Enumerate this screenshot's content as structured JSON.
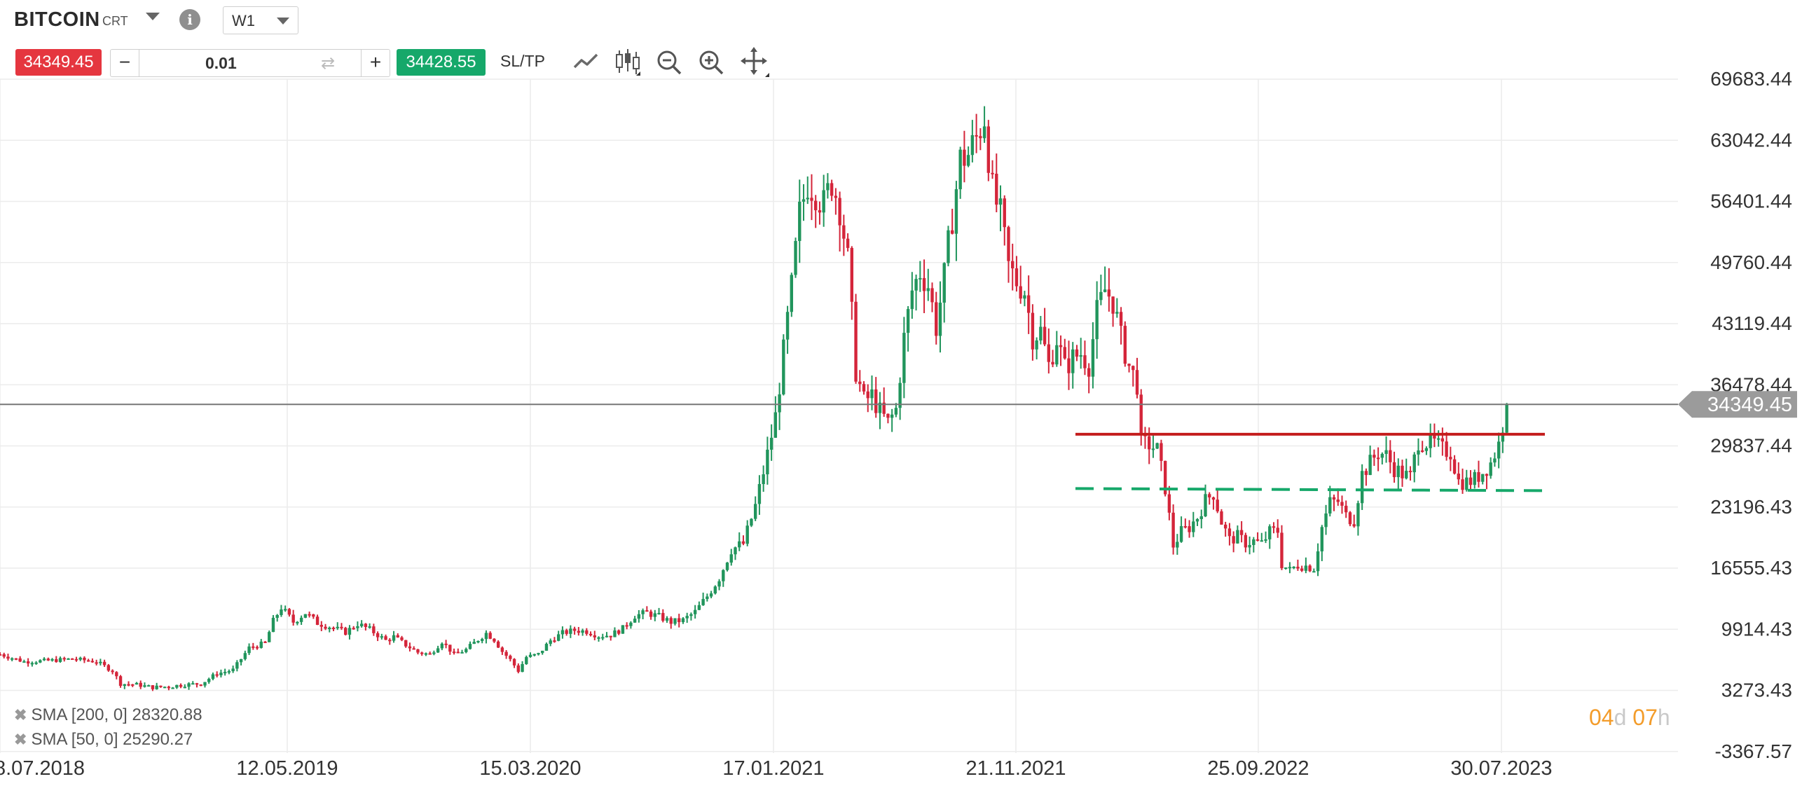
{
  "header": {
    "symbol": "BITCOIN",
    "symbol_suffix": "CRT",
    "timeframe": "W1"
  },
  "trade": {
    "sell_price": "34349.45",
    "lot": "0.01",
    "minus_label": "−",
    "plus_label": "+",
    "buy_price": "34428.55",
    "sltp_label": "SL/TP"
  },
  "toolbar": {
    "icons": [
      "line-chart-icon",
      "candlestick-icon",
      "zoom-out-icon",
      "zoom-in-icon",
      "move-icon"
    ]
  },
  "indicators": [
    {
      "label": "SMA [200, 0] 28320.88"
    },
    {
      "label": "SMA [50, 0] 25290.27"
    }
  ],
  "timer": {
    "days": "04",
    "days_unit": "d",
    "hours": "07",
    "hours_unit": "h"
  },
  "colors": {
    "up": "#21955c",
    "down": "#d4253a",
    "resistance": "#c41d1d",
    "support": "#16a86a",
    "price_line": "#777777",
    "grid": "#ececec"
  },
  "chart_data": {
    "type": "candlestick",
    "title": "",
    "y_ticks": [
      "69683.44",
      "63042.44",
      "56401.44",
      "49760.44",
      "43119.44",
      "36478.44",
      "29837.44",
      "23196.43",
      "16555.43",
      "9914.43",
      "3273.43",
      "-3367.57"
    ],
    "x_ticks": [
      "8.07.2018",
      "12.05.2019",
      "15.03.2020",
      "17.01.2021",
      "21.11.2021",
      "25.09.2022",
      "30.07.2023"
    ],
    "current_price": 34349.45,
    "current_price_label": "34349.45",
    "resistance_level": 31100,
    "support_level": 25200,
    "close_path": [
      [
        0,
        7200
      ],
      [
        6,
        6400
      ],
      [
        12,
        6500
      ],
      [
        18,
        6700
      ],
      [
        24,
        6400
      ],
      [
        28,
        5400
      ],
      [
        30,
        4000
      ],
      [
        34,
        3900
      ],
      [
        38,
        3600
      ],
      [
        42,
        3700
      ],
      [
        46,
        3900
      ],
      [
        50,
        4000
      ],
      [
        54,
        5100
      ],
      [
        58,
        5500
      ],
      [
        62,
        7900
      ],
      [
        66,
        8400
      ],
      [
        68,
        10800
      ],
      [
        70,
        12300
      ],
      [
        73,
        10700
      ],
      [
        76,
        11700
      ],
      [
        79,
        10600
      ],
      [
        82,
        10200
      ],
      [
        86,
        9600
      ],
      [
        89,
        10500
      ],
      [
        92,
        9900
      ],
      [
        96,
        8700
      ],
      [
        98,
        9100
      ],
      [
        101,
        8200
      ],
      [
        104,
        7400
      ],
      [
        107,
        7200
      ],
      [
        110,
        8600
      ],
      [
        113,
        7200
      ],
      [
        116,
        7700
      ],
      [
        119,
        8800
      ],
      [
        121,
        9500
      ],
      [
        123,
        8800
      ],
      [
        125,
        7500
      ],
      [
        127,
        6600
      ],
      [
        129,
        5400
      ],
      [
        131,
        6900
      ],
      [
        134,
        7200
      ],
      [
        137,
        8700
      ],
      [
        140,
        9500
      ],
      [
        143,
        9800
      ],
      [
        146,
        9700
      ],
      [
        149,
        9200
      ],
      [
        152,
        9300
      ],
      [
        155,
        10000
      ],
      [
        158,
        11400
      ],
      [
        161,
        11700
      ],
      [
        164,
        11300
      ],
      [
        167,
        10700
      ],
      [
        170,
        10900
      ],
      [
        173,
        11800
      ],
      [
        176,
        13500
      ],
      [
        179,
        15500
      ],
      [
        182,
        18600
      ],
      [
        185,
        19200
      ],
      [
        188,
        23300
      ],
      [
        191,
        28900
      ],
      [
        193,
        33000
      ],
      [
        195,
        40000
      ],
      [
        197,
        47000
      ],
      [
        199,
        55000
      ],
      [
        201,
        58500
      ],
      [
        203,
        57500
      ],
      [
        205,
        56000
      ],
      [
        207,
        58600
      ],
      [
        209,
        55800
      ],
      [
        211,
        50000
      ],
      [
        213,
        38000
      ],
      [
        215,
        34700
      ],
      [
        217,
        35300
      ],
      [
        219,
        33500
      ],
      [
        221,
        32300
      ],
      [
        223,
        33800
      ],
      [
        225,
        41500
      ],
      [
        227,
        46700
      ],
      [
        229,
        48800
      ],
      [
        231,
        47300
      ],
      [
        233,
        42800
      ],
      [
        235,
        48200
      ],
      [
        237,
        54800
      ],
      [
        239,
        60900
      ],
      [
        241,
        61500
      ],
      [
        243,
        63300
      ],
      [
        245,
        65700
      ],
      [
        247,
        57500
      ],
      [
        249,
        54800
      ],
      [
        251,
        49300
      ],
      [
        253,
        47700
      ],
      [
        255,
        46700
      ],
      [
        257,
        41800
      ],
      [
        259,
        42300
      ],
      [
        261,
        38600
      ],
      [
        263,
        41500
      ],
      [
        265,
        38300
      ],
      [
        267,
        39400
      ],
      [
        269,
        39900
      ],
      [
        271,
        38700
      ],
      [
        273,
        44300
      ],
      [
        275,
        46800
      ],
      [
        277,
        45600
      ],
      [
        279,
        41500
      ],
      [
        281,
        38500
      ],
      [
        283,
        36600
      ],
      [
        284,
        30000
      ],
      [
        286,
        30000
      ],
      [
        288,
        29400
      ],
      [
        290,
        25300
      ],
      [
        292,
        19000
      ],
      [
        294,
        20500
      ],
      [
        296,
        21000
      ],
      [
        298,
        22100
      ],
      [
        300,
        23900
      ],
      [
        302,
        24700
      ],
      [
        304,
        21600
      ],
      [
        306,
        19600
      ],
      [
        308,
        20000
      ],
      [
        310,
        19300
      ],
      [
        312,
        19500
      ],
      [
        314,
        19200
      ],
      [
        316,
        20500
      ],
      [
        318,
        20600
      ],
      [
        319,
        17000
      ],
      [
        321,
        16300
      ],
      [
        323,
        16900
      ],
      [
        325,
        16800
      ],
      [
        327,
        16600
      ],
      [
        329,
        21000
      ],
      [
        331,
        23700
      ],
      [
        333,
        23800
      ],
      [
        335,
        22200
      ],
      [
        337,
        21800
      ],
      [
        339,
        26800
      ],
      [
        341,
        28000
      ],
      [
        343,
        29200
      ],
      [
        345,
        28800
      ],
      [
        347,
        27400
      ],
      [
        349,
        26800
      ],
      [
        351,
        26400
      ],
      [
        353,
        30400
      ],
      [
        355,
        30200
      ],
      [
        357,
        30100
      ],
      [
        359,
        29400
      ],
      [
        361,
        29200
      ],
      [
        363,
        26000
      ],
      [
        365,
        25900
      ],
      [
        367,
        26200
      ],
      [
        369,
        27000
      ],
      [
        371,
        28000
      ],
      [
        373,
        30000
      ],
      [
        375,
        34349
      ]
    ]
  }
}
